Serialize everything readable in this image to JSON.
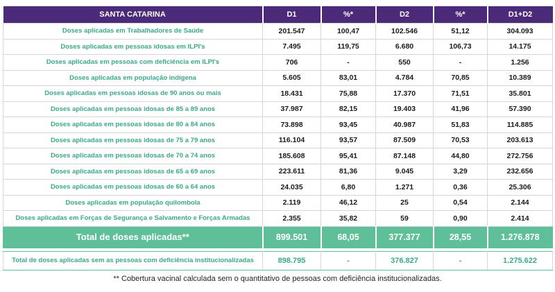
{
  "header": [
    "SANTA CATARINA",
    "D1",
    "%*",
    "D2",
    "%*",
    "D1+D2"
  ],
  "rows": [
    {
      "label": "Doses aplicadas em Trabalhadores de Saúde",
      "d1": "201.547",
      "p1": "100,47",
      "d2": "102.546",
      "p2": "51,12",
      "sum": "304.093"
    },
    {
      "label": "Doses aplicadas em pessoas idosas em ILPI's",
      "d1": "7.495",
      "p1": "119,75",
      "d2": "6.680",
      "p2": "106,73",
      "sum": "14.175"
    },
    {
      "label": "Doses aplicadas em pessoas com deficiência em ILPI's",
      "d1": "706",
      "p1": "-",
      "d2": "550",
      "p2": "-",
      "sum": "1.256"
    },
    {
      "label": "Doses aplicadas em população indígena",
      "d1": "5.605",
      "p1": "83,01",
      "d2": "4.784",
      "p2": "70,85",
      "sum": "10.389"
    },
    {
      "label": "Doses aplicadas em pessoas idosas  de 90 anos ou mais",
      "d1": "18.431",
      "p1": "75,88",
      "d2": "17.370",
      "p2": "71,51",
      "sum": "35.801"
    },
    {
      "label": "Doses aplicadas em pessoas idosas de 85 a 89 anos",
      "d1": "37.987",
      "p1": "82,15",
      "d2": "19.403",
      "p2": "41,96",
      "sum": "57.390"
    },
    {
      "label": "Doses aplicadas em pessoas idosas de 80 a 84 anos",
      "d1": "73.898",
      "p1": "93,45",
      "d2": "40.987",
      "p2": "51,83",
      "sum": "114.885"
    },
    {
      "label": "Doses aplicadas em pessoas idosas de 75 a 79 anos",
      "d1": "116.104",
      "p1": "93,57",
      "d2": "87.509",
      "p2": "70,53",
      "sum": "203.613"
    },
    {
      "label": "Doses aplicadas em pessoas idosas de 70 a 74 anos",
      "d1": "185.608",
      "p1": "95,41",
      "d2": "87.148",
      "p2": "44,80",
      "sum": "272.756"
    },
    {
      "label": "Doses aplicadas em pessoas idosas de 65 a 69 anos",
      "d1": "223.611",
      "p1": "81,36",
      "d2": "9.045",
      "p2": "3,29",
      "sum": "232.656"
    },
    {
      "label": "Doses aplicadas em pessoas idosas de 60 a 64 anos",
      "d1": "24.035",
      "p1": "6,80",
      "d2": "1.271",
      "p2": "0,36",
      "sum": "25.306"
    },
    {
      "label": "Doses aplicadas em população quilombola",
      "d1": "2.119",
      "p1": "46,12",
      "d2": "25",
      "p2": "0,54",
      "sum": "2.144"
    },
    {
      "label": "Doses aplicadas em Forças de Segurança e Salvamento e Forças Armadas",
      "d1": "2.355",
      "p1": "35,82",
      "d2": "59",
      "p2": "0,90",
      "sum": "2.414"
    }
  ],
  "total": {
    "label": "Total de doses aplicadas**",
    "d1": "899.501",
    "p1": "68,05",
    "d2": "377.377",
    "p2": "28,55",
    "sum": "1.276.878"
  },
  "total_inst": {
    "label": "Total de doses aplicadas sem as pessoas com deficiência institucionalizadas",
    "d1": "898.795",
    "p1": "-",
    "d2": "376.827",
    "p2": "-",
    "sum": "1.275.622"
  },
  "footnote": "** Cobertura vacinal calculada sem o quantitativo de pessoas com deficiência institucionalizadas.",
  "colors": {
    "header_bg": "#4b2a7a",
    "label_green": "#3aa98a",
    "total_bg": "#5fbf99"
  }
}
